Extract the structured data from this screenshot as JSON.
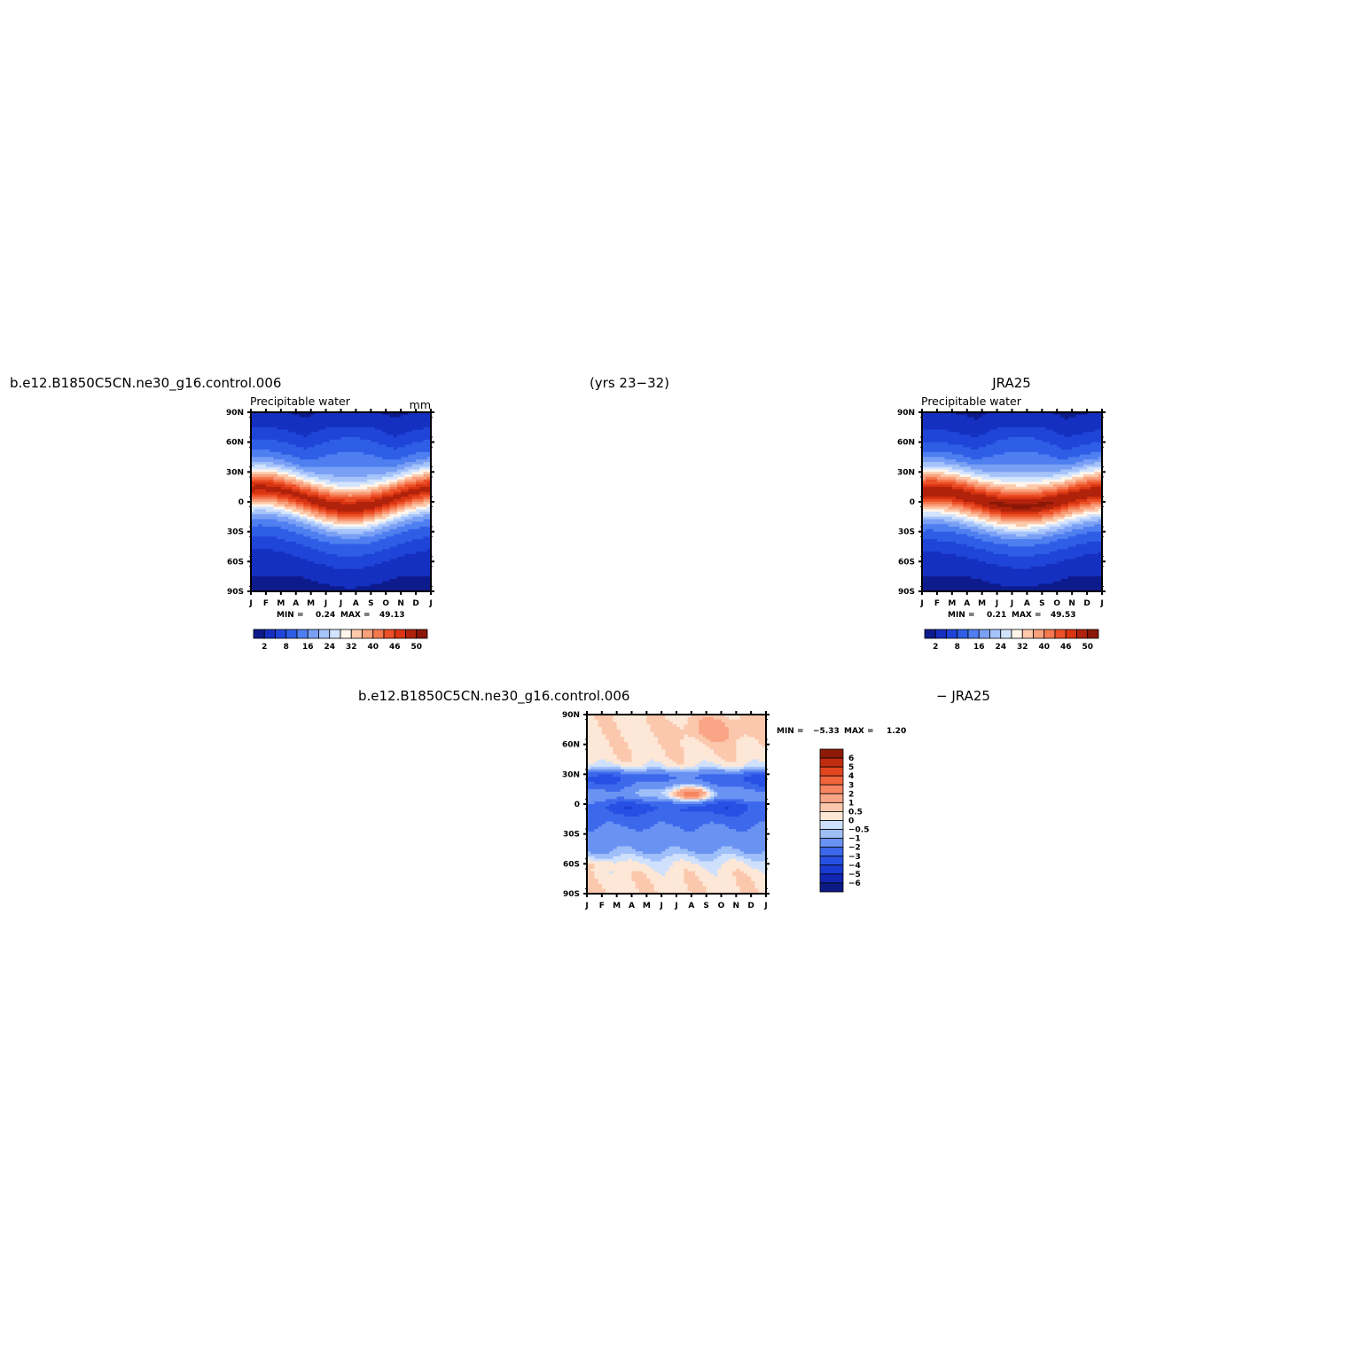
{
  "header": {
    "left_title": "b.e12.B1850C5CN.ne30_g16.control.006",
    "center_title": "(yrs 23−32)",
    "right_title": "JRA25",
    "diff_title_left": "b.e12.B1850C5CN.ne30_g16.control.006",
    "diff_title_right": "− JRA25"
  },
  "colors": {
    "main_scale": [
      "#0d1b8c",
      "#1530c0",
      "#1f45d8",
      "#2f5ee6",
      "#4f7ff0",
      "#7aa0f5",
      "#a6c3fa",
      "#d2e3fd",
      "#fff5eb",
      "#fcc9aa",
      "#f9a07c",
      "#f47850",
      "#ec5028",
      "#d93512",
      "#b0220b",
      "#8a1707"
    ],
    "diff_scale": [
      "#0c1a84",
      "#1226b2",
      "#1a3bd1",
      "#2750e4",
      "#3c68ec",
      "#6a92f3",
      "#9fbff9",
      "#cfe0fd",
      "#fde7d6",
      "#fbc8ad",
      "#f9a586",
      "#f6855f",
      "#f1643c",
      "#e3461f",
      "#c02c0f",
      "#8e1a08"
    ]
  },
  "chart_data": [
    {
      "type": "heatmap",
      "panel": "model",
      "title": "Precipitable water",
      "units": "mm",
      "xlabel": "",
      "ylabel": "",
      "x_ticks": [
        "J",
        "F",
        "M",
        "A",
        "M",
        "J",
        "J",
        "A",
        "S",
        "O",
        "N",
        "D",
        "J"
      ],
      "y_ticks": [
        "90N",
        "60N",
        "30N",
        "0",
        "30S",
        "60S",
        "90S"
      ],
      "ylim": [
        -90,
        90
      ],
      "stats": {
        "min_label": "MIN =",
        "min": "0.24",
        "max_label": "MAX =",
        "max": "49.13"
      },
      "colorbar_labels": [
        "2",
        "8",
        "16",
        "24",
        "32",
        "40",
        "46",
        "50"
      ],
      "field": {
        "peak_value": 49,
        "itcz_mean_lat": 4,
        "itcz_amplitude": 10,
        "itcz_width": 14,
        "floor_value": 1.5
      }
    },
    {
      "type": "heatmap",
      "panel": "obs",
      "title": "Precipitable water",
      "units": "",
      "xlabel": "",
      "ylabel": "",
      "x_ticks": [
        "J",
        "F",
        "M",
        "A",
        "M",
        "J",
        "J",
        "A",
        "S",
        "O",
        "N",
        "D",
        "J"
      ],
      "y_ticks": [
        "90N",
        "60N",
        "30N",
        "0",
        "30S",
        "60S",
        "90S"
      ],
      "ylim": [
        -90,
        90
      ],
      "stats": {
        "min_label": "MIN =",
        "min": "0.21",
        "max_label": "MAX =",
        "max": "49.53"
      },
      "colorbar_labels": [
        "2",
        "8",
        "16",
        "24",
        "32",
        "40",
        "46",
        "50"
      ],
      "field": {
        "peak_value": 50,
        "itcz_mean_lat": 3,
        "itcz_amplitude": 8,
        "itcz_width": 16,
        "floor_value": 1.5
      }
    },
    {
      "type": "heatmap",
      "panel": "difference",
      "title": "",
      "units": "",
      "xlabel": "",
      "ylabel": "",
      "x_ticks": [
        "J",
        "F",
        "M",
        "A",
        "M",
        "J",
        "J",
        "A",
        "S",
        "O",
        "N",
        "D",
        "J"
      ],
      "y_ticks": [
        "90N",
        "60N",
        "30N",
        "0",
        "30S",
        "60S",
        "90S"
      ],
      "ylim": [
        -90,
        90
      ],
      "stats": {
        "min_label": "MIN =",
        "min": "−5.33",
        "max_label": "MAX =",
        "max": "1.20"
      },
      "colorbar_labels": [
        "6",
        "5",
        "4",
        "3",
        "2",
        "1",
        "0.5",
        "0",
        "−0.5",
        "−1",
        "−2",
        "−3",
        "−4",
        "−5",
        "−6"
      ]
    }
  ]
}
